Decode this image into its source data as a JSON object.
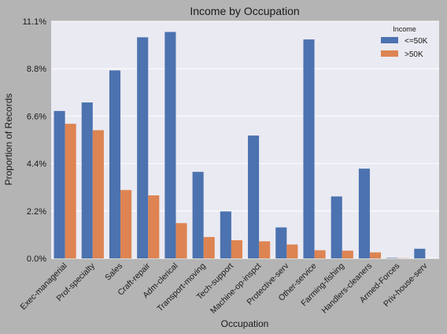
{
  "chart_data": {
    "type": "bar",
    "title": "Income by Occupation",
    "xlabel": "Occupation",
    "ylabel": "Proportion of Records",
    "ylim": [
      0,
      11.1
    ],
    "y_ticks": [
      "0.0%",
      "2.2%",
      "4.4%",
      "6.6%",
      "8.8%",
      "11.1%"
    ],
    "y_tick_values": [
      0,
      2.22,
      4.44,
      6.66,
      8.88,
      11.1
    ],
    "grid": true,
    "legend": {
      "title": "Income",
      "placement": "top-right"
    },
    "categories": [
      "Exec-managerial",
      "Prof-specialty",
      "Sales",
      "Craft-repair",
      "Adm-clerical",
      "Transport-moving",
      "Tech-support",
      "Machine-op-inspct",
      "Protective-serv",
      "Other-service",
      "Farming-fishing",
      "Handlers-cleaners",
      "Armed-Forces",
      "Priv-house-serv"
    ],
    "series": [
      {
        "name": "<=50K",
        "color": "#4c72b0",
        "values": [
          6.9,
          7.3,
          8.8,
          10.35,
          10.6,
          4.05,
          2.2,
          5.75,
          1.45,
          10.25,
          2.9,
          4.2,
          0.02,
          0.45
        ]
      },
      {
        "name": ">50K",
        "color": "#dd8452",
        "values": [
          6.3,
          6.0,
          3.2,
          2.95,
          1.65,
          1.0,
          0.85,
          0.8,
          0.65,
          0.38,
          0.36,
          0.28,
          0.01,
          0.0
        ]
      }
    ]
  }
}
